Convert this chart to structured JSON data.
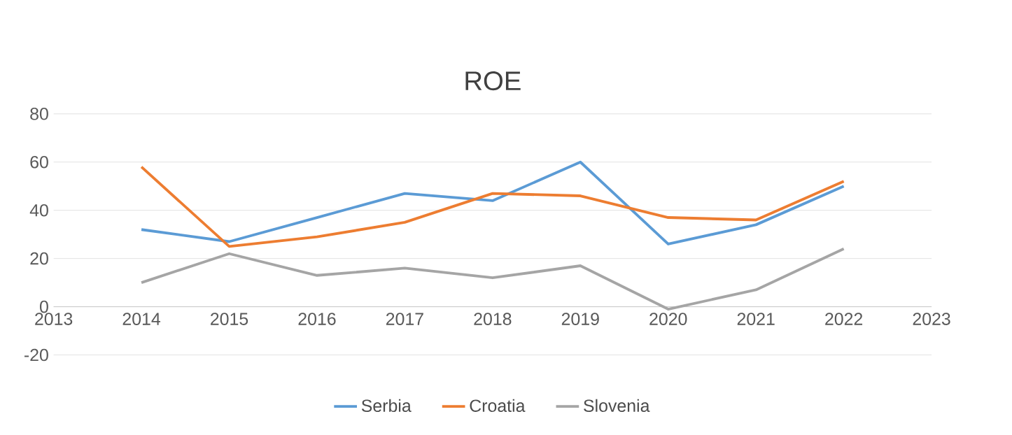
{
  "chart_data": {
    "type": "line",
    "title": "ROE",
    "x": [
      2014,
      2015,
      2016,
      2017,
      2018,
      2019,
      2020,
      2021,
      2022
    ],
    "xlim": [
      2013,
      2023
    ],
    "xticks": [
      2013,
      2014,
      2015,
      2016,
      2017,
      2018,
      2019,
      2020,
      2021,
      2022,
      2023
    ],
    "ylim": [
      -20,
      80
    ],
    "yticks": [
      -20,
      0,
      20,
      40,
      60,
      80
    ],
    "grid": "y",
    "legend": "bottom",
    "marker": "none",
    "line_style": "solid",
    "series": [
      {
        "name": "Serbia",
        "color": "#5b9bd5",
        "values": [
          32,
          27,
          37,
          47,
          44,
          60,
          26,
          34,
          50
        ]
      },
      {
        "name": "Croatia",
        "color": "#ed7d31",
        "values": [
          58,
          25,
          29,
          35,
          47,
          46,
          37,
          36,
          52
        ]
      },
      {
        "name": "Slovenia",
        "color": "#a5a5a5",
        "values": [
          10,
          22,
          13,
          16,
          12,
          17,
          -1,
          7,
          24
        ]
      }
    ]
  }
}
